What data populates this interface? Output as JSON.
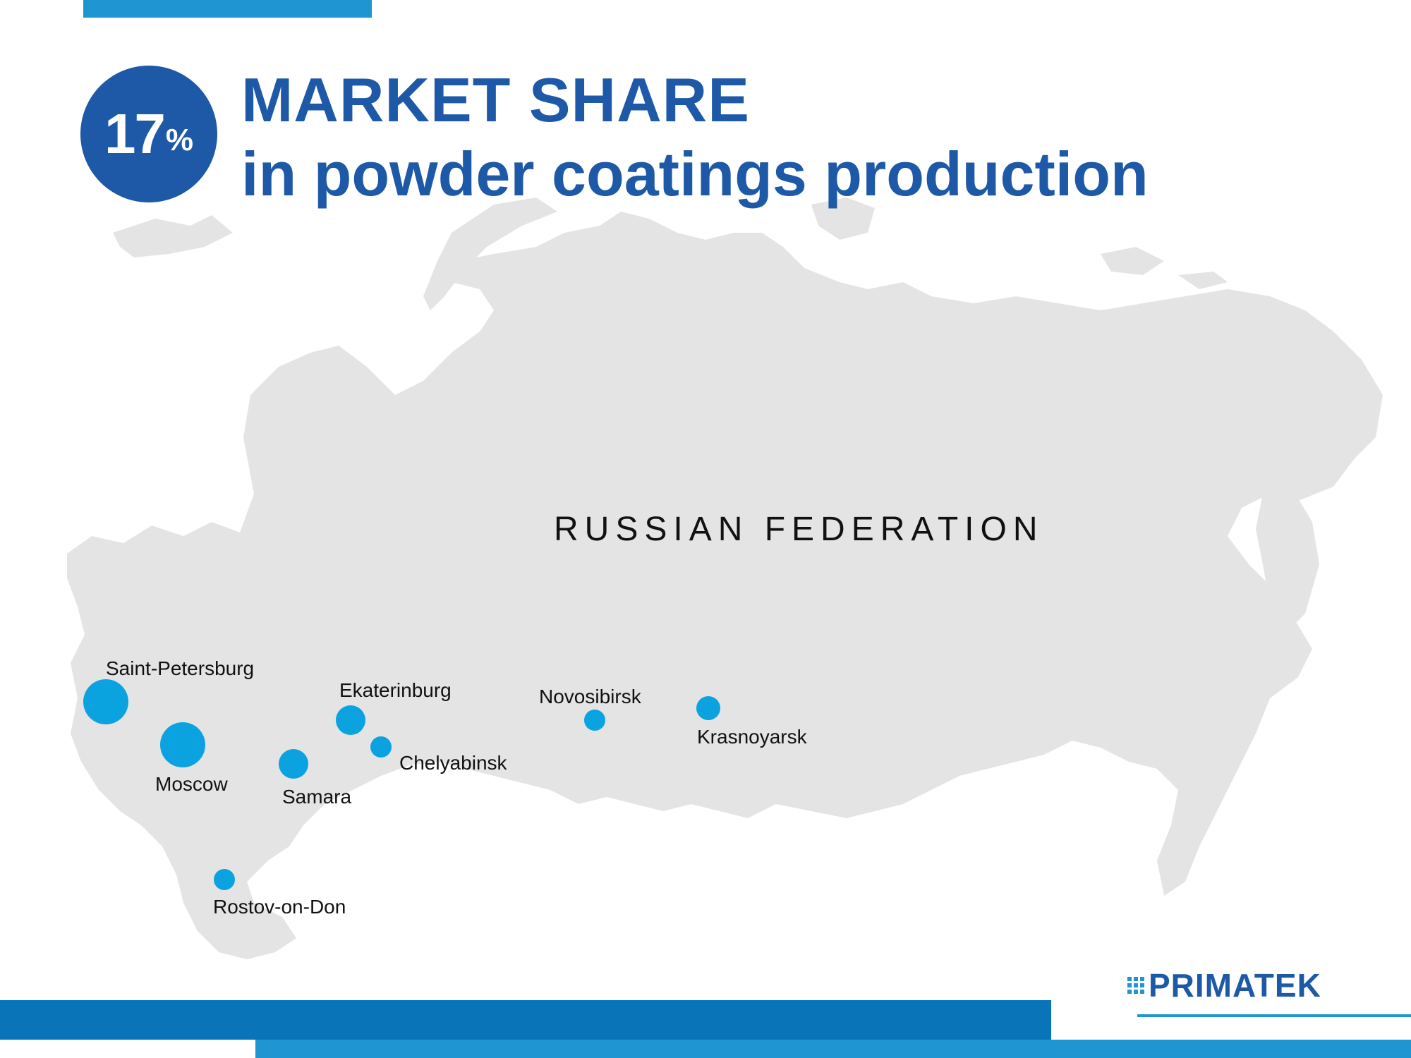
{
  "badge": {
    "value": "17",
    "unit": "%"
  },
  "title": {
    "line1": "MARKET SHARE",
    "line2": "in powder coatings production"
  },
  "map": {
    "country": "RUSSIAN FEDERATION",
    "colors": {
      "land": "#e4e4e4",
      "marker": "#0aa3e0"
    },
    "cities": [
      {
        "name": "Saint-Petersburg",
        "size": "large"
      },
      {
        "name": "Moscow",
        "size": "large"
      },
      {
        "name": "Samara",
        "size": "medium"
      },
      {
        "name": "Ekaterinburg",
        "size": "medium"
      },
      {
        "name": "Chelyabinsk",
        "size": "small"
      },
      {
        "name": "Novosibirsk",
        "size": "small"
      },
      {
        "name": "Krasnoyarsk",
        "size": "small"
      },
      {
        "name": "Rostov-on-Don",
        "size": "small"
      }
    ]
  },
  "logo": {
    "text": "PRIMATEK",
    "icon": "dot-grid-icon"
  },
  "colors": {
    "brand_dark": "#1d59a6",
    "brand_light": "#1f96d2",
    "bar_mid": "#0975b8"
  }
}
